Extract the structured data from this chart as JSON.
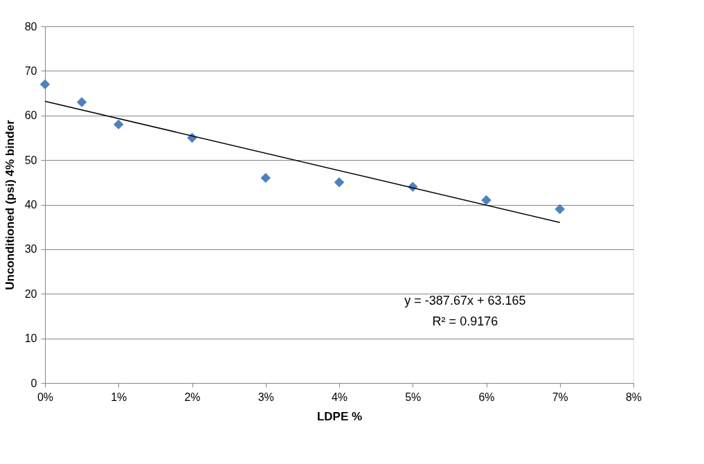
{
  "chart_data": {
    "type": "scatter",
    "xlabel": "LDPE %",
    "ylabel": "Unconditioned (psi) 4% binder",
    "x": [
      0,
      0.005,
      0.01,
      0.02,
      0.03,
      0.04,
      0.05,
      0.06,
      0.07
    ],
    "series": [
      {
        "color": "#4f81bd",
        "marker": "diamond",
        "values": [
          67,
          63,
          58,
          55,
          46,
          45,
          44,
          41,
          39
        ]
      },
      {
        "type": "line",
        "color": "#000000",
        "x": [
          0,
          0.07
        ],
        "values": [
          63.2,
          36.0
        ],
        "line_style": "solid"
      }
    ],
    "xlim": [
      0,
      0.08
    ],
    "xticks": [
      {
        "value": 0,
        "label": "0%"
      },
      {
        "value": 0.01,
        "label": "1%"
      },
      {
        "value": 0.02,
        "label": "2%"
      },
      {
        "value": 0.03,
        "label": "3%"
      },
      {
        "value": 0.04,
        "label": "4%"
      },
      {
        "value": 0.05,
        "label": "5%"
      },
      {
        "value": 0.06,
        "label": "6%"
      },
      {
        "value": 0.07,
        "label": "7%"
      },
      {
        "value": 0.08,
        "label": "8%"
      }
    ],
    "ylim": [
      0,
      80
    ],
    "yticks": [
      0,
      10,
      20,
      30,
      40,
      50,
      60,
      70,
      80
    ],
    "grid": "y",
    "annotations": [
      "y = -387.67x + 63.165",
      "R² = 0.9176"
    ]
  }
}
